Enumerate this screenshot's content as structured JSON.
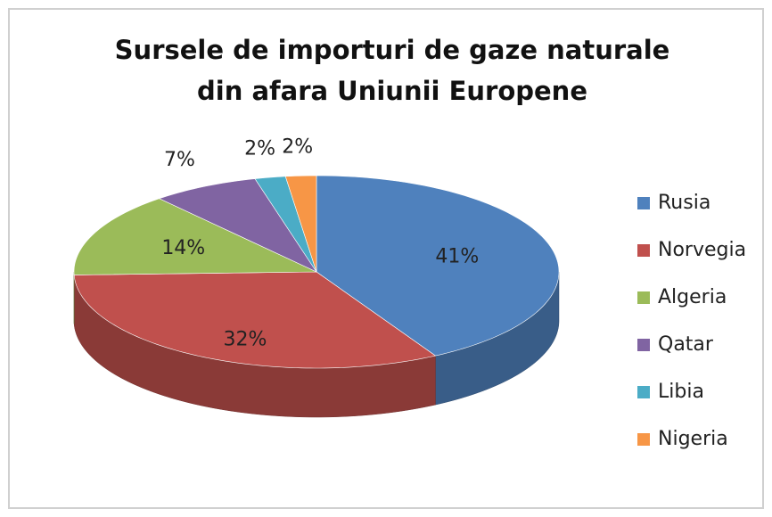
{
  "chart_data": {
    "type": "pie",
    "title": [
      "Sursele de importuri de gaze naturale",
      "din afara Uniunii Europene"
    ],
    "categories": [
      "Rusia",
      "Norvegia",
      "Algeria",
      "Qatar",
      "Libia",
      "Nigeria"
    ],
    "values": [
      41,
      32,
      14,
      7,
      2,
      2
    ],
    "value_labels": [
      "41%",
      "32%",
      "14%",
      "7%",
      "2%",
      "2%"
    ],
    "colors": [
      "#4f81bd",
      "#c0504d",
      "#9bbb59",
      "#8064a2",
      "#4bacc6",
      "#f79646"
    ],
    "legend": "right"
  }
}
